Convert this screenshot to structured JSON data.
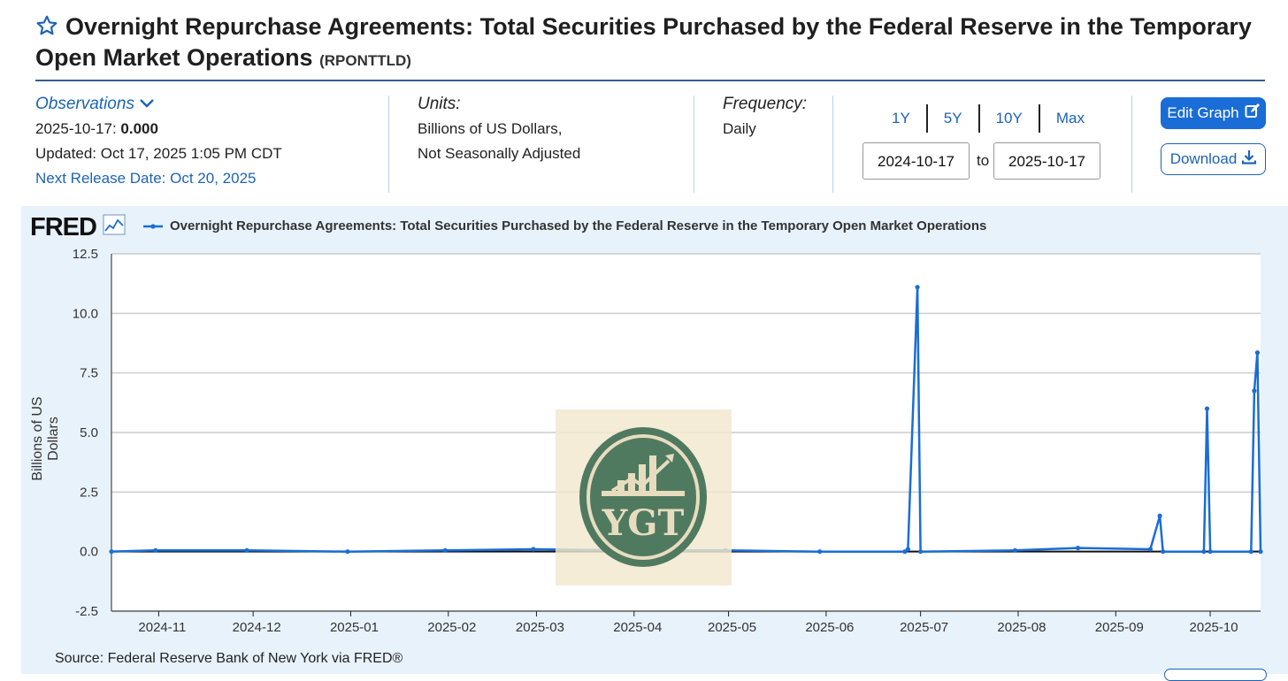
{
  "header": {
    "title": "Overnight Repurchase Agreements: Total Securities Purchased by the Federal Reserve in the Temporary Open Market Operations",
    "series_id": "(RPONTTLD)"
  },
  "observations": {
    "label": "Observations",
    "date": "2025-10-17:",
    "value": "0.000",
    "updated": "Updated: Oct 17, 2025 1:05 PM CDT",
    "next_release": "Next Release Date: Oct 20, 2025"
  },
  "units": {
    "label": "Units:",
    "line1": "Billions of US Dollars,",
    "line2": "Not Seasonally Adjusted"
  },
  "frequency": {
    "label": "Frequency:",
    "value": "Daily"
  },
  "range": {
    "buttons": [
      "1Y",
      "5Y",
      "10Y",
      "Max"
    ],
    "start": "2024-10-17",
    "to": "to",
    "end": "2025-10-17"
  },
  "actions": {
    "edit": "Edit Graph",
    "download": "Download"
  },
  "chart_header": {
    "logo": "FRED",
    "legend": "Overnight Repurchase Agreements: Total Securities Purchased by the Federal Reserve in the Temporary Open Market Operations"
  },
  "watermark": "YGT",
  "source": "Source: Federal Reserve Bank of New York via FRED®",
  "colors": {
    "series": "#1a6dd6",
    "link": "#1d63b8",
    "panel": "#e8f2fb"
  },
  "chart_data": {
    "type": "line",
    "title": "Overnight Repurchase Agreements: Total Securities Purchased by the Federal Reserve in the Temporary Open Market Operations",
    "xlabel": "",
    "ylabel": "Billions of US Dollars",
    "ylim": [
      -2.5,
      12.5
    ],
    "yticks": [
      "12.5",
      "10.0",
      "7.5",
      "5.0",
      "2.5",
      "0.0",
      "-2.5"
    ],
    "xlim": [
      "2024-10-17",
      "2025-10-17"
    ],
    "xticks": [
      "2024-11",
      "2024-12",
      "2025-01",
      "2025-02",
      "2025-03",
      "2025-04",
      "2025-05",
      "2025-06",
      "2025-07",
      "2025-08",
      "2025-09",
      "2025-10"
    ],
    "grid": true,
    "series": [
      {
        "name": "RPONTTLD",
        "points": [
          [
            "2024-10-17",
            0.0
          ],
          [
            "2024-10-31",
            0.05
          ],
          [
            "2024-11-29",
            0.05
          ],
          [
            "2024-12-31",
            0.0
          ],
          [
            "2025-01-31",
            0.05
          ],
          [
            "2025-02-28",
            0.1
          ],
          [
            "2025-03-31",
            0.05
          ],
          [
            "2025-04-30",
            0.05
          ],
          [
            "2025-05-30",
            0.0
          ],
          [
            "2025-06-26",
            0.0
          ],
          [
            "2025-06-27",
            0.1
          ],
          [
            "2025-06-30",
            11.1
          ],
          [
            "2025-07-01",
            0.0
          ],
          [
            "2025-07-31",
            0.05
          ],
          [
            "2025-08-20",
            0.15
          ],
          [
            "2025-09-12",
            0.1
          ],
          [
            "2025-09-15",
            1.5
          ],
          [
            "2025-09-16",
            0.0
          ],
          [
            "2025-09-29",
            0.0
          ],
          [
            "2025-09-30",
            6.0
          ],
          [
            "2025-10-01",
            0.0
          ],
          [
            "2025-10-14",
            0.0
          ],
          [
            "2025-10-15",
            6.75
          ],
          [
            "2025-10-16",
            8.35
          ],
          [
            "2025-10-17",
            0.0
          ]
        ]
      }
    ]
  }
}
